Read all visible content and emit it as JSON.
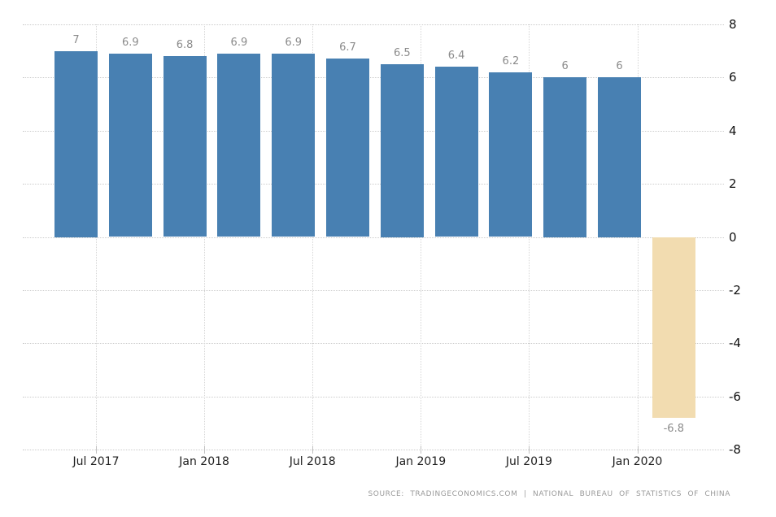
{
  "chart_data": {
    "type": "bar",
    "title": "",
    "values": [
      7,
      6.9,
      6.8,
      6.9,
      6.9,
      6.7,
      6.5,
      6.4,
      6.2,
      6,
      6,
      -6.8
    ],
    "bar_labels": [
      "7",
      "6.9",
      "6.8",
      "6.9",
      "6.9",
      "6.7",
      "6.5",
      "6.4",
      "6.2",
      "6",
      "6",
      "-6.8"
    ],
    "x_tick_labels": [
      "Jul 2017",
      "Jan 2018",
      "Jul 2018",
      "Jan 2019",
      "Jul 2019",
      "Jan 2020"
    ],
    "y_tick_labels": [
      "8",
      "6",
      "4",
      "2",
      "0",
      "-2",
      "-4",
      "-6",
      "-8"
    ],
    "ylim": [
      -8,
      8
    ],
    "y_axis_position": "right",
    "grid": "dotted-horizontal-and-vertical",
    "legend": "none",
    "colors": {
      "positive_bar": "#4880B2",
      "negative_bar": "#F2DCB0",
      "bar_label": "#8B8B8B",
      "gridline": "#CCCCCC",
      "y_axis_label": "#111111",
      "x_axis_label": "#1F1F1F",
      "source_text": "#9A9A9A",
      "background": "#FFFFFF"
    }
  },
  "footer": {
    "source": "SOURCE: TRADINGECONOMICS.COM | NATIONAL BUREAU OF STATISTICS OF CHINA"
  }
}
